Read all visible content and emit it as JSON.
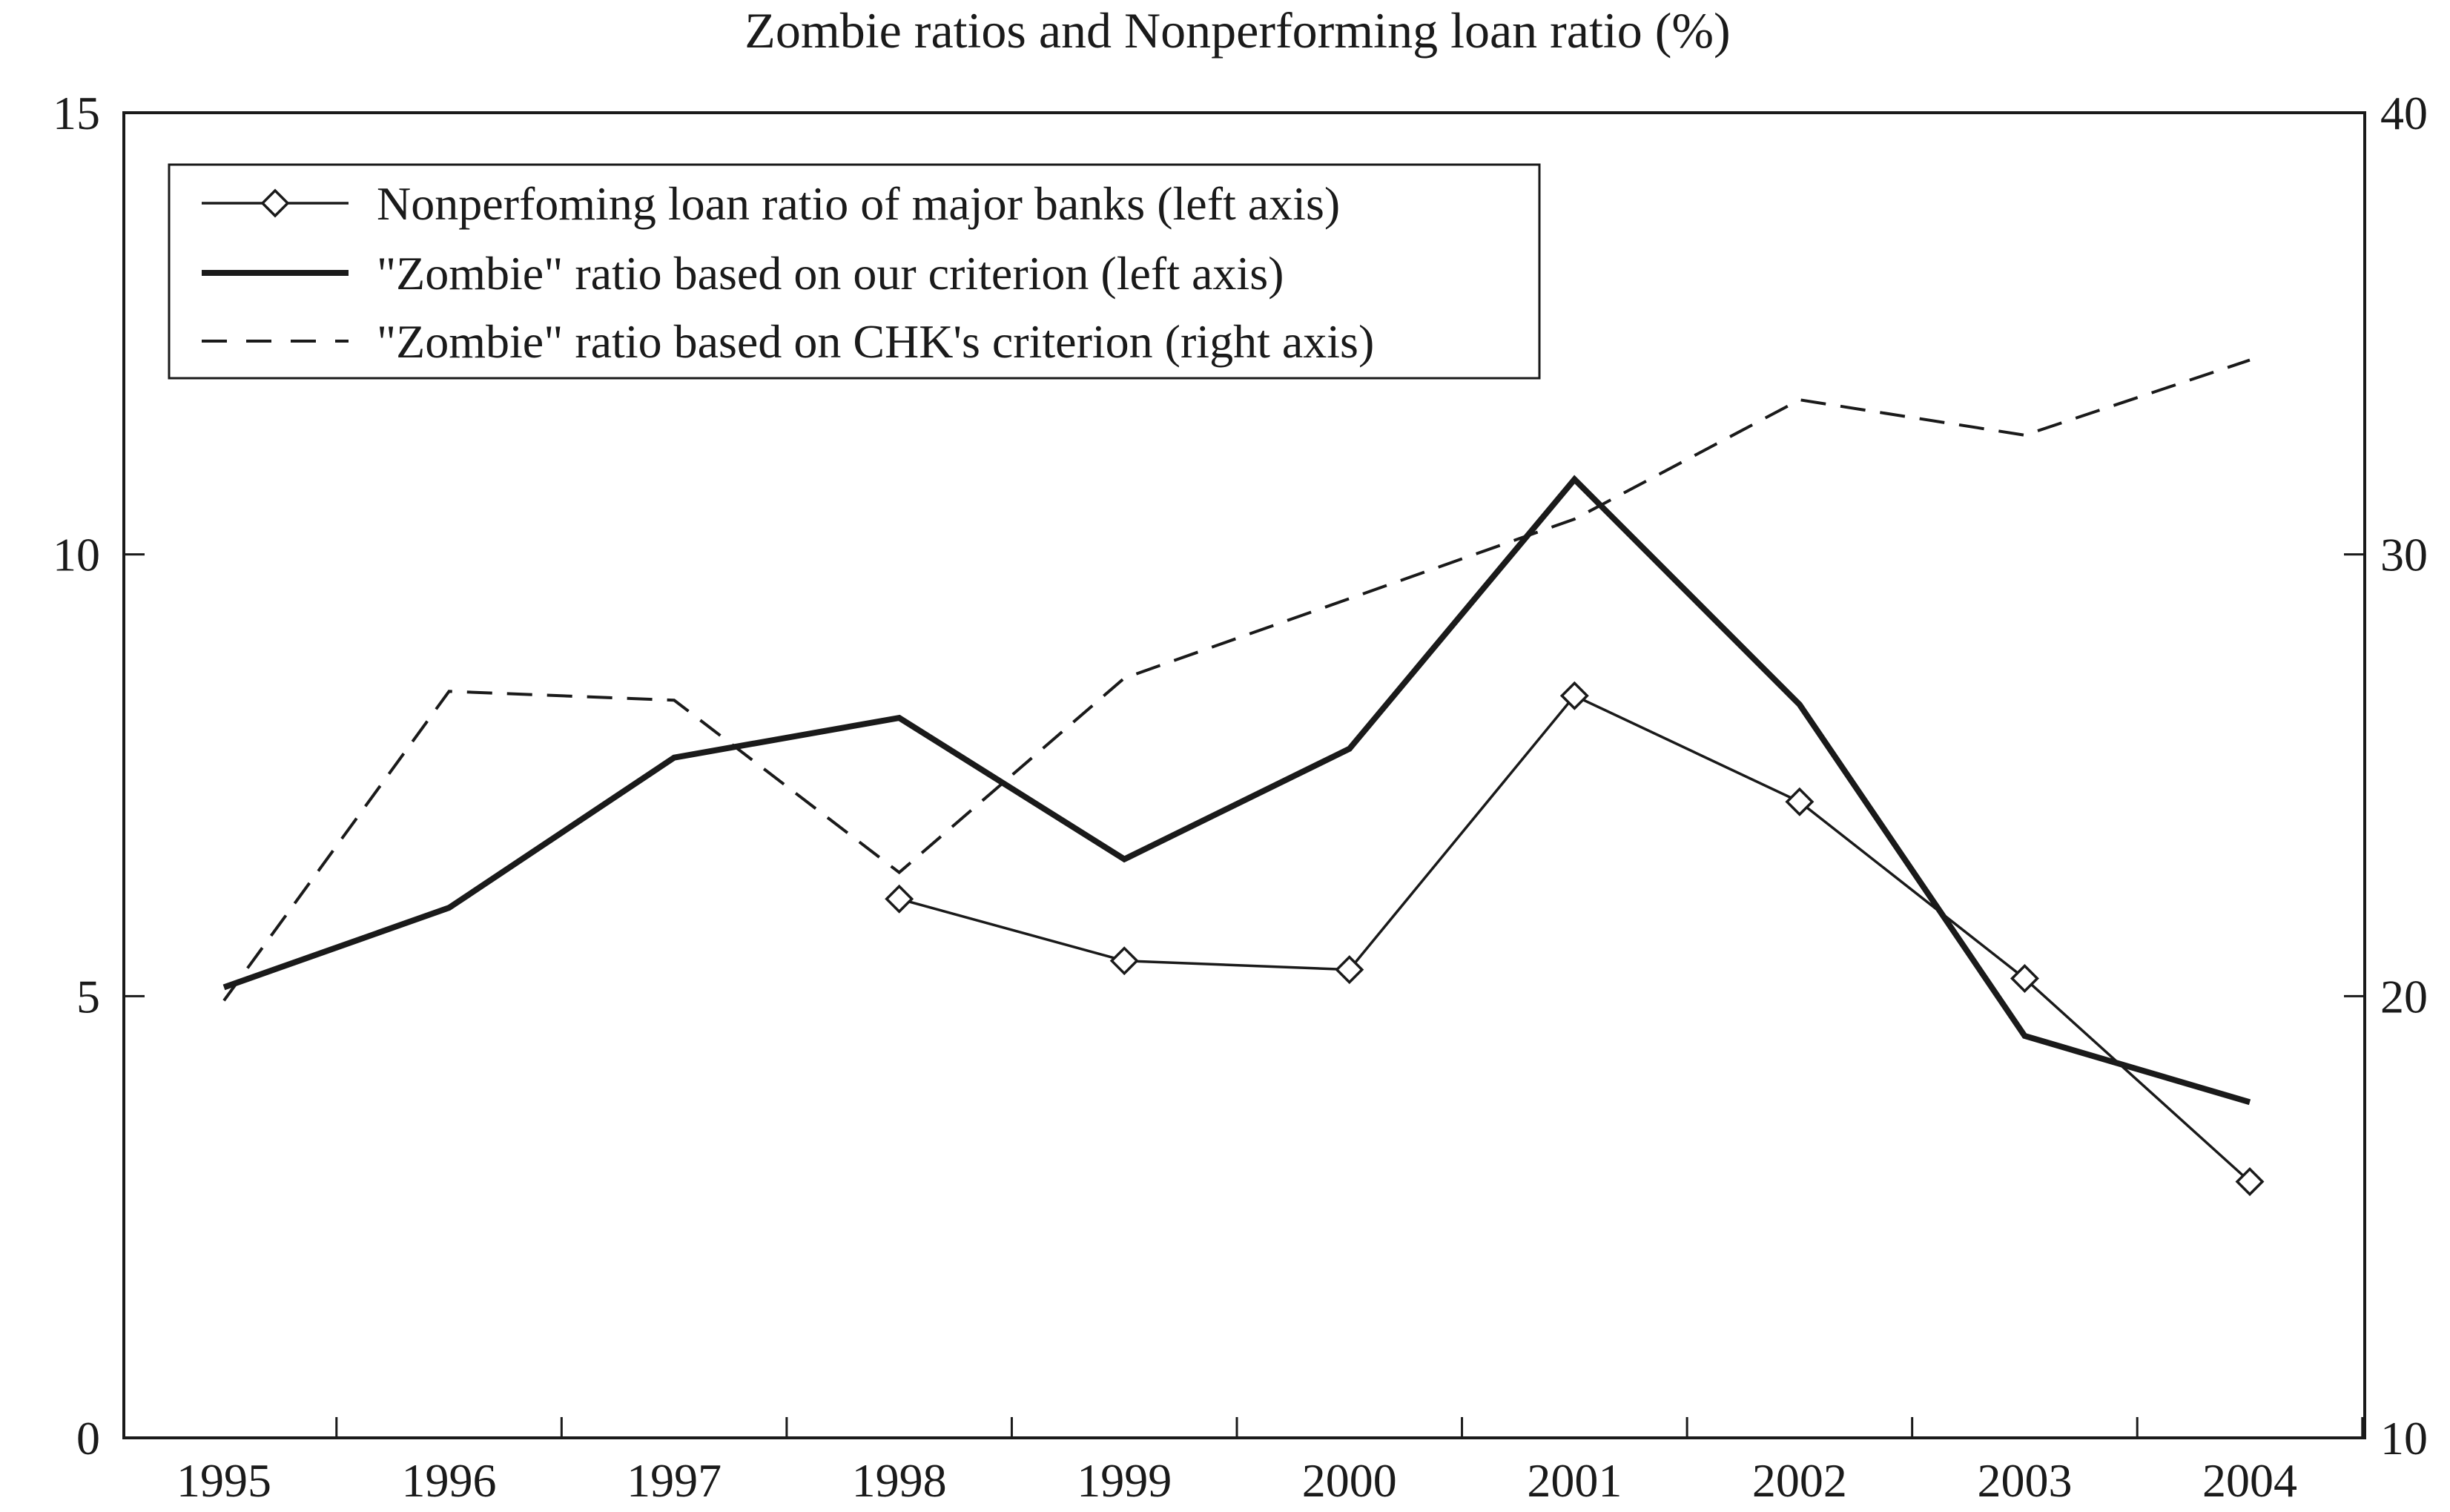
{
  "chart_data": {
    "type": "line",
    "title": "Zombie ratios and Nonperforming loan ratio (%)",
    "xlabel": "",
    "ylabel": "",
    "y2label": "",
    "categories": [
      "1995",
      "1996",
      "1997",
      "1998",
      "1999",
      "2000",
      "2001",
      "2002",
      "2003",
      "2004"
    ],
    "ylim": [
      0,
      15
    ],
    "y2lim": [
      10,
      40
    ],
    "yticks": [
      0,
      5,
      10,
      15
    ],
    "y2ticks": [
      10,
      20,
      30,
      40
    ],
    "grid": false,
    "legend_position": "top-left",
    "series": [
      {
        "name": "Nonperfoming loan ratio of major banks (left axis)",
        "axis": "left",
        "style": "thin-line-diamond-markers",
        "color": "#1a1a1a",
        "values": [
          null,
          null,
          null,
          6.1,
          5.4,
          5.3,
          8.4,
          7.2,
          5.2,
          2.9
        ]
      },
      {
        "name": "\"Zombie\" ratio based on our criterion (left axis)",
        "axis": "left",
        "style": "thick-line",
        "color": "#1a1a1a",
        "values": [
          5.1,
          6.0,
          7.7,
          8.15,
          6.55,
          7.8,
          10.85,
          8.3,
          4.55,
          3.8
        ]
      },
      {
        "name": "\"Zombie\" ratio based on CHK's criterion (right axis)",
        "axis": "right",
        "style": "dashed-line",
        "color": "#1a1a1a",
        "values": [
          19.9,
          26.9,
          26.7,
          22.8,
          27.2,
          29.0,
          30.8,
          33.5,
          32.7,
          34.4
        ]
      }
    ]
  }
}
